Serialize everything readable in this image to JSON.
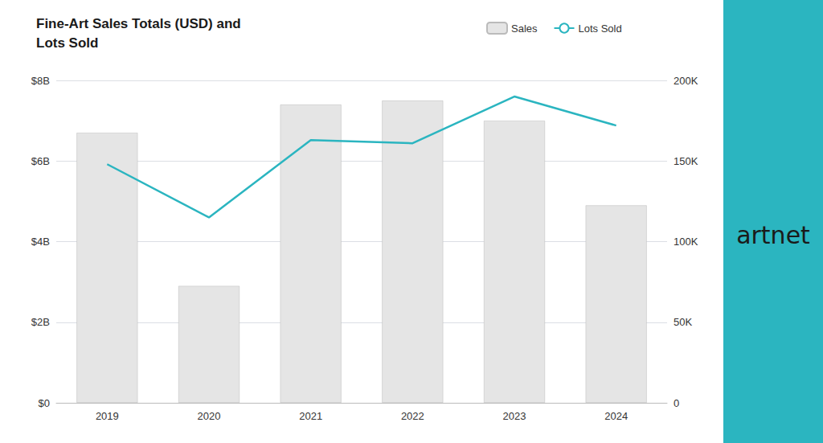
{
  "chart_data": {
    "type": "bar",
    "title": "Fine-Art Sales Totals (USD) and\nLots Sold",
    "categories": [
      "2019",
      "2020",
      "2021",
      "2022",
      "2023",
      "2024"
    ],
    "series": [
      {
        "name": "Sales",
        "type": "bar",
        "color": "#E5E5E5",
        "values": [
          6700000000,
          2900000000,
          7400000000,
          7500000000,
          7000000000,
          4900000000
        ]
      },
      {
        "name": "Lots Sold",
        "type": "line",
        "color": "#2BB5C0",
        "axis": "y2",
        "values": [
          148000,
          115000,
          163000,
          161000,
          190000,
          172000
        ]
      }
    ],
    "ylim": [
      0,
      8000000000
    ],
    "yticks": [
      {
        "value": 0,
        "label": "$0"
      },
      {
        "value": 2000000000,
        "label": "$2B"
      },
      {
        "value": 4000000000,
        "label": "$4B"
      },
      {
        "value": 6000000000,
        "label": "$6B"
      },
      {
        "value": 8000000000,
        "label": "$8B"
      }
    ],
    "y2lim": [
      0,
      200000
    ],
    "y2ticks": [
      0,
      {
        "value": 50000,
        "label": "50K"
      },
      {
        "value": 100000,
        "label": "100K"
      },
      {
        "value": 150000,
        "label": "150K"
      },
      {
        "value": 200000,
        "label": "200K"
      }
    ],
    "grid": true,
    "legend": "top",
    "annotations": [
      "artnet"
    ]
  }
}
